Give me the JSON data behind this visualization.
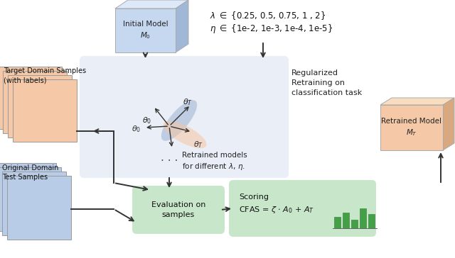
{
  "fig_width": 6.4,
  "fig_height": 3.64,
  "bg_color": "#ffffff",
  "target_samples_label": "Target Domain Samples\n(with labels)",
  "original_samples_label": "Original Domain\nTest Samples",
  "initial_model_label": "Initial Model\n$M_0$",
  "retrained_model_label": "Retrained Model\n$M_T$",
  "lambda_text": "$\\lambda$ $\\in$ {0.25, 0.5, 0.75, 1 , 2}",
  "eta_text": "$\\eta$ $\\in$ {1e-2, 1e-3, 1e-4, 1e-5}",
  "reg_retraining_label": "Regularized\nRetraining on\nclassification task",
  "retrained_models_label": "Retrained models\nfor different $\\lambda$, $\\eta$.",
  "evaluation_label": "Evaluation on\nsamples",
  "scoring_label": "Scoring\nCFAS = $\\zeta$ $\\cdot$ $A_0$ + $A_T$",
  "theta_T_label": "$\\theta_T$",
  "theta_0_label": "$\\theta_0$",
  "salmon_card_color": "#f5c9a7",
  "salmon_card_edge": "#999999",
  "blue_card_color": "#b8cce8",
  "blue_card_edge": "#999999",
  "initial_box_face": "#c5d8f0",
  "initial_box_top": "#dde9f8",
  "initial_box_side": "#a0b8d5",
  "retrained_box_face": "#f5c9a7",
  "retrained_box_top": "#f8ddc0",
  "retrained_box_side": "#d8a880",
  "center_bg_color": "#eaeff7",
  "eval_box_color": "#c8e6c9",
  "scoring_box_color": "#c8e6c9",
  "arrow_color": "#333333",
  "bar_heights": [
    16,
    22,
    12,
    28,
    20
  ],
  "bar_color": "#43a047",
  "bar_edge_color": "#2e7d32"
}
